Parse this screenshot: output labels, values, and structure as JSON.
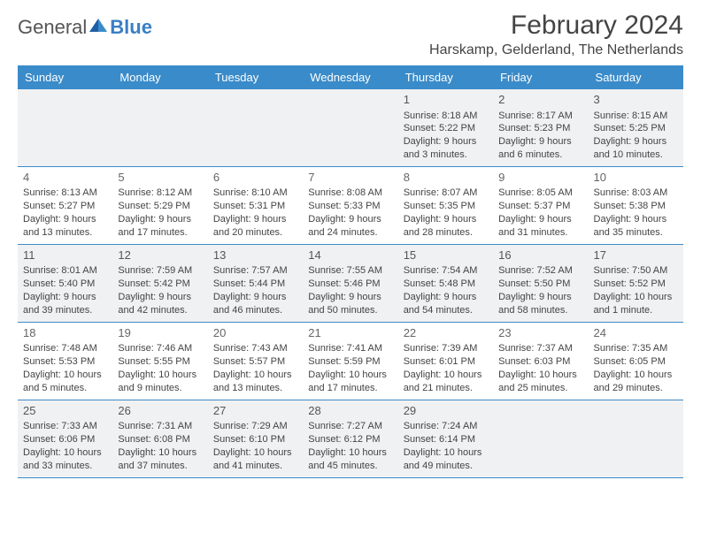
{
  "logo": {
    "general": "General",
    "blue": "Blue"
  },
  "title": "February 2024",
  "location": "Harskamp, Gelderland, The Netherlands",
  "colors": {
    "header_bg": "#3a8bc9",
    "alt_bg": "#f0f1f2"
  },
  "dow": [
    "Sunday",
    "Monday",
    "Tuesday",
    "Wednesday",
    "Thursday",
    "Friday",
    "Saturday"
  ],
  "weeks": [
    [
      null,
      null,
      null,
      null,
      {
        "n": "1",
        "sr": "Sunrise: 8:18 AM",
        "ss": "Sunset: 5:22 PM",
        "d1": "Daylight: 9 hours",
        "d2": "and 3 minutes."
      },
      {
        "n": "2",
        "sr": "Sunrise: 8:17 AM",
        "ss": "Sunset: 5:23 PM",
        "d1": "Daylight: 9 hours",
        "d2": "and 6 minutes."
      },
      {
        "n": "3",
        "sr": "Sunrise: 8:15 AM",
        "ss": "Sunset: 5:25 PM",
        "d1": "Daylight: 9 hours",
        "d2": "and 10 minutes."
      }
    ],
    [
      {
        "n": "4",
        "sr": "Sunrise: 8:13 AM",
        "ss": "Sunset: 5:27 PM",
        "d1": "Daylight: 9 hours",
        "d2": "and 13 minutes."
      },
      {
        "n": "5",
        "sr": "Sunrise: 8:12 AM",
        "ss": "Sunset: 5:29 PM",
        "d1": "Daylight: 9 hours",
        "d2": "and 17 minutes."
      },
      {
        "n": "6",
        "sr": "Sunrise: 8:10 AM",
        "ss": "Sunset: 5:31 PM",
        "d1": "Daylight: 9 hours",
        "d2": "and 20 minutes."
      },
      {
        "n": "7",
        "sr": "Sunrise: 8:08 AM",
        "ss": "Sunset: 5:33 PM",
        "d1": "Daylight: 9 hours",
        "d2": "and 24 minutes."
      },
      {
        "n": "8",
        "sr": "Sunrise: 8:07 AM",
        "ss": "Sunset: 5:35 PM",
        "d1": "Daylight: 9 hours",
        "d2": "and 28 minutes."
      },
      {
        "n": "9",
        "sr": "Sunrise: 8:05 AM",
        "ss": "Sunset: 5:37 PM",
        "d1": "Daylight: 9 hours",
        "d2": "and 31 minutes."
      },
      {
        "n": "10",
        "sr": "Sunrise: 8:03 AM",
        "ss": "Sunset: 5:38 PM",
        "d1": "Daylight: 9 hours",
        "d2": "and 35 minutes."
      }
    ],
    [
      {
        "n": "11",
        "sr": "Sunrise: 8:01 AM",
        "ss": "Sunset: 5:40 PM",
        "d1": "Daylight: 9 hours",
        "d2": "and 39 minutes."
      },
      {
        "n": "12",
        "sr": "Sunrise: 7:59 AM",
        "ss": "Sunset: 5:42 PM",
        "d1": "Daylight: 9 hours",
        "d2": "and 42 minutes."
      },
      {
        "n": "13",
        "sr": "Sunrise: 7:57 AM",
        "ss": "Sunset: 5:44 PM",
        "d1": "Daylight: 9 hours",
        "d2": "and 46 minutes."
      },
      {
        "n": "14",
        "sr": "Sunrise: 7:55 AM",
        "ss": "Sunset: 5:46 PM",
        "d1": "Daylight: 9 hours",
        "d2": "and 50 minutes."
      },
      {
        "n": "15",
        "sr": "Sunrise: 7:54 AM",
        "ss": "Sunset: 5:48 PM",
        "d1": "Daylight: 9 hours",
        "d2": "and 54 minutes."
      },
      {
        "n": "16",
        "sr": "Sunrise: 7:52 AM",
        "ss": "Sunset: 5:50 PM",
        "d1": "Daylight: 9 hours",
        "d2": "and 58 minutes."
      },
      {
        "n": "17",
        "sr": "Sunrise: 7:50 AM",
        "ss": "Sunset: 5:52 PM",
        "d1": "Daylight: 10 hours",
        "d2": "and 1 minute."
      }
    ],
    [
      {
        "n": "18",
        "sr": "Sunrise: 7:48 AM",
        "ss": "Sunset: 5:53 PM",
        "d1": "Daylight: 10 hours",
        "d2": "and 5 minutes."
      },
      {
        "n": "19",
        "sr": "Sunrise: 7:46 AM",
        "ss": "Sunset: 5:55 PM",
        "d1": "Daylight: 10 hours",
        "d2": "and 9 minutes."
      },
      {
        "n": "20",
        "sr": "Sunrise: 7:43 AM",
        "ss": "Sunset: 5:57 PM",
        "d1": "Daylight: 10 hours",
        "d2": "and 13 minutes."
      },
      {
        "n": "21",
        "sr": "Sunrise: 7:41 AM",
        "ss": "Sunset: 5:59 PM",
        "d1": "Daylight: 10 hours",
        "d2": "and 17 minutes."
      },
      {
        "n": "22",
        "sr": "Sunrise: 7:39 AM",
        "ss": "Sunset: 6:01 PM",
        "d1": "Daylight: 10 hours",
        "d2": "and 21 minutes."
      },
      {
        "n": "23",
        "sr": "Sunrise: 7:37 AM",
        "ss": "Sunset: 6:03 PM",
        "d1": "Daylight: 10 hours",
        "d2": "and 25 minutes."
      },
      {
        "n": "24",
        "sr": "Sunrise: 7:35 AM",
        "ss": "Sunset: 6:05 PM",
        "d1": "Daylight: 10 hours",
        "d2": "and 29 minutes."
      }
    ],
    [
      {
        "n": "25",
        "sr": "Sunrise: 7:33 AM",
        "ss": "Sunset: 6:06 PM",
        "d1": "Daylight: 10 hours",
        "d2": "and 33 minutes."
      },
      {
        "n": "26",
        "sr": "Sunrise: 7:31 AM",
        "ss": "Sunset: 6:08 PM",
        "d1": "Daylight: 10 hours",
        "d2": "and 37 minutes."
      },
      {
        "n": "27",
        "sr": "Sunrise: 7:29 AM",
        "ss": "Sunset: 6:10 PM",
        "d1": "Daylight: 10 hours",
        "d2": "and 41 minutes."
      },
      {
        "n": "28",
        "sr": "Sunrise: 7:27 AM",
        "ss": "Sunset: 6:12 PM",
        "d1": "Daylight: 10 hours",
        "d2": "and 45 minutes."
      },
      {
        "n": "29",
        "sr": "Sunrise: 7:24 AM",
        "ss": "Sunset: 6:14 PM",
        "d1": "Daylight: 10 hours",
        "d2": "and 49 minutes."
      },
      null,
      null
    ]
  ]
}
